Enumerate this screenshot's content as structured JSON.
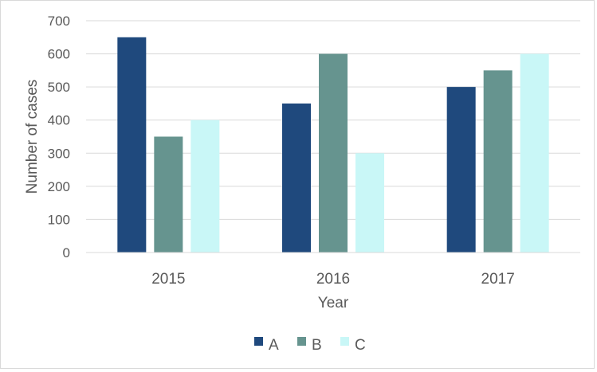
{
  "chart_data": {
    "type": "bar",
    "categories": [
      "2015",
      "2016",
      "2017"
    ],
    "series": [
      {
        "name": "A",
        "values": [
          650,
          450,
          500
        ],
        "color": "#1f497d"
      },
      {
        "name": "B",
        "values": [
          350,
          600,
          550
        ],
        "color": "#66948f"
      },
      {
        "name": "C",
        "values": [
          400,
          300,
          600
        ],
        "color": "#c9f7f7"
      }
    ],
    "xlabel": "Year",
    "ylabel": "Number of cases",
    "ylim": [
      0,
      700
    ],
    "yticks": [
      0,
      100,
      200,
      300,
      400,
      500,
      600,
      700
    ],
    "grid": true,
    "legend": "bottom"
  }
}
